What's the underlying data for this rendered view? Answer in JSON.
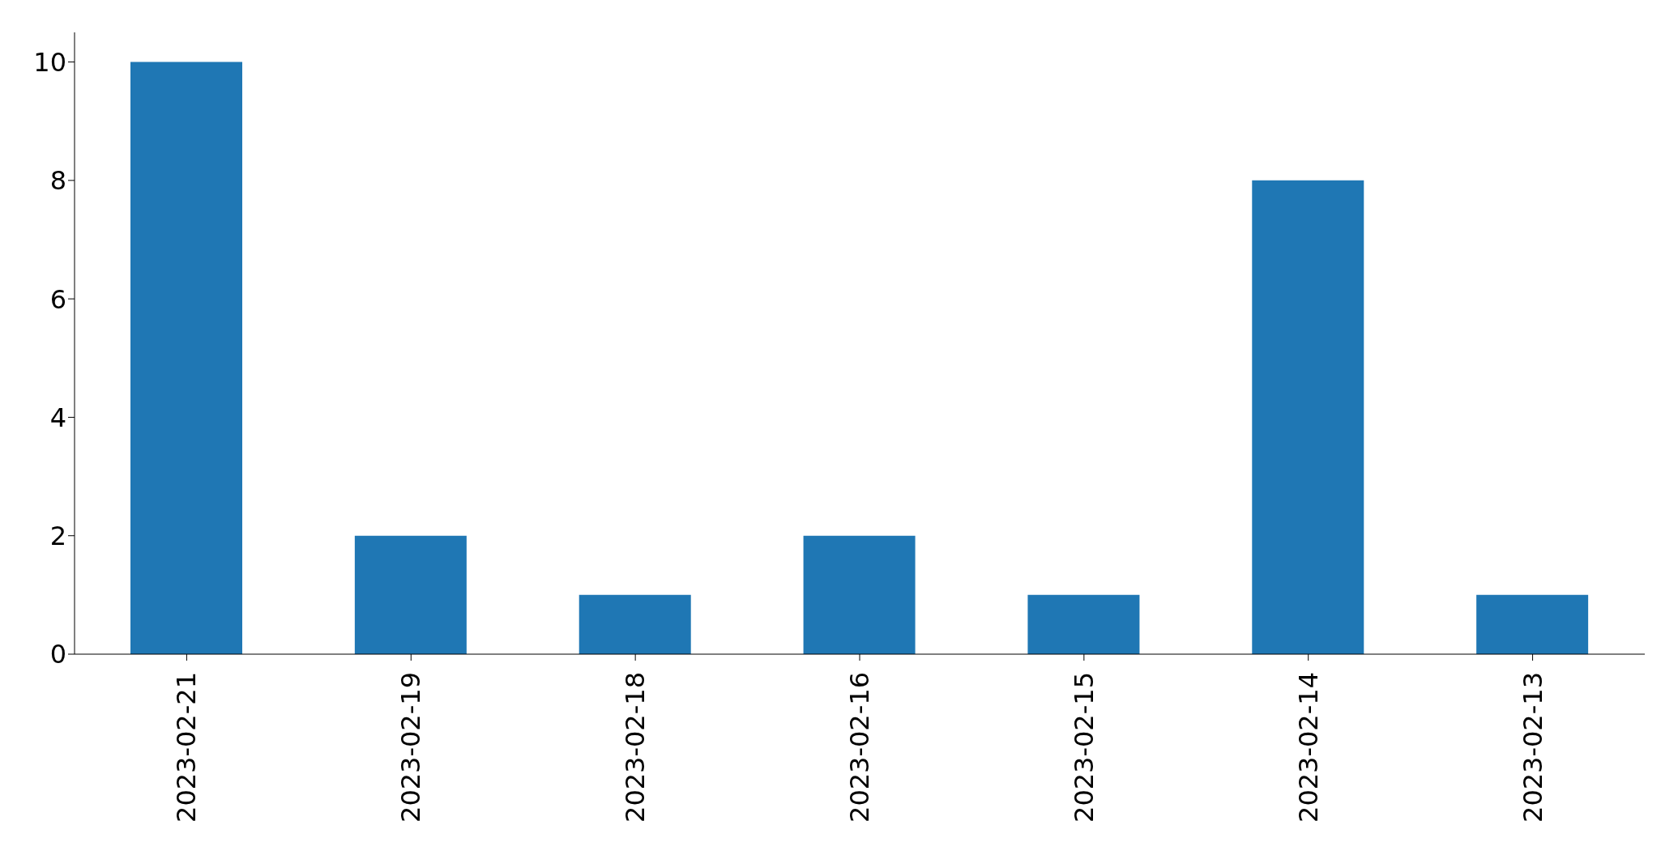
{
  "chart_data": {
    "type": "bar",
    "categories": [
      "2023-02-21",
      "2023-02-19",
      "2023-02-18",
      "2023-02-16",
      "2023-02-15",
      "2023-02-14",
      "2023-02-13"
    ],
    "values": [
      10,
      2,
      1,
      2,
      1,
      8,
      1
    ],
    "color": "#1f77b4",
    "ylim": [
      0,
      10.5
    ],
    "yticks": [
      0,
      2,
      4,
      6,
      8,
      10
    ],
    "grid": false,
    "legend": false
  }
}
